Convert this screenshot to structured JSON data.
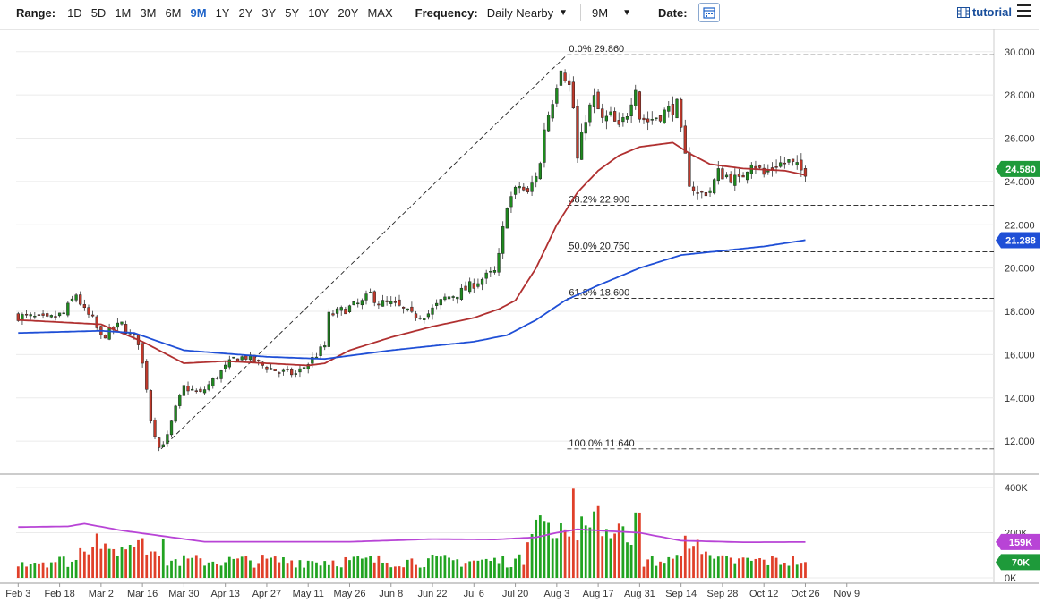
{
  "toolbar": {
    "range_label": "Range:",
    "ranges": [
      "1D",
      "5D",
      "1M",
      "3M",
      "6M",
      "9M",
      "1Y",
      "2Y",
      "3Y",
      "5Y",
      "10Y",
      "20Y",
      "MAX"
    ],
    "active_range": "9M",
    "frequency_label": "Frequency:",
    "frequency_value": "Daily Nearby",
    "period_value": "9M",
    "date_label": "Date:",
    "tutorial_label": "tutorial"
  },
  "chart_data": {
    "type": "candlestick",
    "price_axis": {
      "ticks": [
        "30.000",
        "28.000",
        "26.000",
        "24.000",
        "22.000",
        "20.000",
        "18.000",
        "16.000",
        "14.000",
        "12.000"
      ],
      "range": [
        10.6,
        30.9
      ]
    },
    "volume_axis": {
      "ticks": [
        "400K",
        "200K",
        "0K"
      ],
      "range": [
        0,
        420000
      ]
    },
    "x_ticks": [
      "Feb 3",
      "Feb 18",
      "Mar 2",
      "Mar 16",
      "Mar 30",
      "Apr 13",
      "Apr 27",
      "May 11",
      "May 26",
      "Jun 8",
      "Jun 22",
      "Jul 6",
      "Jul 20",
      "Aug 3",
      "Aug 17",
      "Aug 31",
      "Sep 14",
      "Sep 28",
      "Oct 12",
      "Oct 26",
      "Nov 9"
    ],
    "last_price": "24.580",
    "ma200_value": "21.288",
    "volume_ma_value": "159K",
    "last_volume": "70K",
    "fibonacci": [
      {
        "label": "0.0% 29.860",
        "value": 29.86
      },
      {
        "label": "38.2% 22.900",
        "value": 22.9
      },
      {
        "label": "50.0% 20.750",
        "value": 20.75
      },
      {
        "label": "61.8% 18.600",
        "value": 18.6
      },
      {
        "label": "100.0% 11.640",
        "value": 11.64
      }
    ],
    "trendline": {
      "from": {
        "day": 35,
        "price": 11.64
      },
      "to": {
        "day": 133,
        "price": 29.86
      }
    },
    "anchors": [
      [
        0,
        17.8
      ],
      [
        5,
        17.7
      ],
      [
        8,
        17.6
      ],
      [
        12,
        17.9
      ],
      [
        15,
        18.8
      ],
      [
        17,
        18.0
      ],
      [
        19,
        17.6
      ],
      [
        21,
        16.8
      ],
      [
        24,
        17.2
      ],
      [
        26,
        17.4
      ],
      [
        28,
        16.9
      ],
      [
        30,
        16.6
      ],
      [
        32,
        14.5
      ],
      [
        33,
        13.0
      ],
      [
        35,
        11.7
      ],
      [
        37,
        12.2
      ],
      [
        39,
        13.5
      ],
      [
        41,
        14.5
      ],
      [
        45,
        14.2
      ],
      [
        49,
        15.0
      ],
      [
        53,
        15.8
      ],
      [
        56,
        15.9
      ],
      [
        60,
        15.5
      ],
      [
        64,
        15.2
      ],
      [
        68,
        15.1
      ],
      [
        71,
        15.6
      ],
      [
        75,
        16.4
      ],
      [
        76,
        17.8
      ],
      [
        80,
        18.1
      ],
      [
        84,
        18.4
      ],
      [
        86,
        18.8
      ],
      [
        88,
        18.4
      ],
      [
        92,
        18.3
      ],
      [
        96,
        17.8
      ],
      [
        100,
        17.9
      ],
      [
        104,
        18.6
      ],
      [
        108,
        18.9
      ],
      [
        112,
        19.4
      ],
      [
        116,
        19.8
      ],
      [
        117,
        20.5
      ],
      [
        119,
        23.0
      ],
      [
        122,
        23.8
      ],
      [
        124,
        23.4
      ],
      [
        127,
        24.8
      ],
      [
        128,
        26.5
      ],
      [
        130,
        27.8
      ],
      [
        132,
        29.4
      ],
      [
        134,
        28.4
      ],
      [
        135,
        27.4
      ],
      [
        136,
        25.0
      ],
      [
        138,
        27.0
      ],
      [
        140,
        27.8
      ],
      [
        142,
        26.8
      ],
      [
        144,
        27.0
      ],
      [
        146,
        26.4
      ],
      [
        148,
        27.2
      ],
      [
        150,
        28.5
      ],
      [
        151,
        27.0
      ],
      [
        153,
        26.8
      ],
      [
        157,
        27.2
      ],
      [
        160,
        27.5
      ],
      [
        161,
        26.2
      ],
      [
        163,
        24.0
      ],
      [
        165,
        23.4
      ],
      [
        168,
        23.6
      ],
      [
        170,
        24.4
      ],
      [
        173,
        24.2
      ],
      [
        175,
        24.0
      ],
      [
        178,
        25.0
      ],
      [
        181,
        24.3
      ],
      [
        184,
        24.8
      ],
      [
        187,
        24.9
      ],
      [
        190,
        24.5
      ]
    ],
    "ma50_anchors": [
      [
        0,
        17.6
      ],
      [
        10,
        17.5
      ],
      [
        20,
        17.4
      ],
      [
        30,
        16.6
      ],
      [
        40,
        15.6
      ],
      [
        50,
        15.7
      ],
      [
        60,
        15.6
      ],
      [
        70,
        15.5
      ],
      [
        74,
        15.6
      ],
      [
        80,
        16.2
      ],
      [
        90,
        16.8
      ],
      [
        100,
        17.3
      ],
      [
        110,
        17.7
      ],
      [
        116,
        18.1
      ],
      [
        120,
        18.5
      ],
      [
        125,
        20.0
      ],
      [
        130,
        22.0
      ],
      [
        135,
        23.5
      ],
      [
        140,
        24.5
      ],
      [
        145,
        25.2
      ],
      [
        150,
        25.6
      ],
      [
        158,
        25.8
      ],
      [
        162,
        25.3
      ],
      [
        167,
        24.8
      ],
      [
        175,
        24.6
      ],
      [
        185,
        24.5
      ],
      [
        190,
        24.3
      ]
    ],
    "ma200_anchors": [
      [
        0,
        17.0
      ],
      [
        20,
        17.1
      ],
      [
        28,
        17.0
      ],
      [
        40,
        16.2
      ],
      [
        60,
        15.9
      ],
      [
        74,
        15.8
      ],
      [
        90,
        16.2
      ],
      [
        110,
        16.6
      ],
      [
        118,
        16.9
      ],
      [
        125,
        17.6
      ],
      [
        132,
        18.5
      ],
      [
        140,
        19.2
      ],
      [
        150,
        20.0
      ],
      [
        160,
        20.6
      ],
      [
        170,
        20.8
      ],
      [
        180,
        21.0
      ],
      [
        190,
        21.29
      ]
    ]
  }
}
